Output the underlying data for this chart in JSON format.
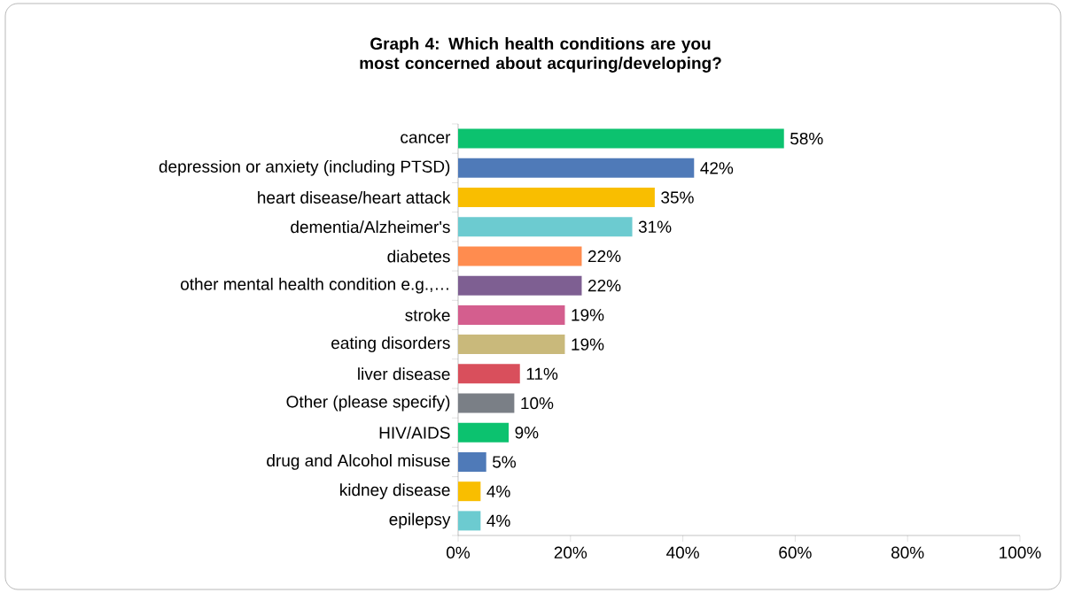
{
  "chart_data": {
    "type": "bar",
    "orientation": "horizontal",
    "title": "Graph 4: Which health conditions are you most concerned about acquring/developing?",
    "categories": [
      "cancer",
      "depression or anxiety (including PTSD)",
      "heart disease/heart attack",
      "dementia/Alzheimer's",
      "diabetes",
      "other mental health condition e.g.,…",
      "stroke",
      "eating disorders",
      "liver disease",
      "Other (please specify)",
      "HIV/AIDS",
      "drug and Alcohol misuse",
      "kidney disease",
      "epilepsy"
    ],
    "values": [
      58,
      42,
      35,
      31,
      22,
      22,
      19,
      19,
      11,
      10,
      9,
      5,
      4,
      4
    ],
    "value_labels": [
      "58%",
      "42%",
      "35%",
      "31%",
      "22%",
      "22%",
      "19%",
      "19%",
      "11%",
      "10%",
      "9%",
      "5%",
      "4%",
      "4%"
    ],
    "colors": [
      "#0cc26f",
      "#4f7ab8",
      "#f9be00",
      "#6ccbd0",
      "#ff8c4f",
      "#7e5f92",
      "#d45e8e",
      "#c9b97b",
      "#d94f5c",
      "#7a7f86",
      "#0cc26f",
      "#4f7ab8",
      "#f9be00",
      "#6ccbd0"
    ],
    "xlim": [
      0,
      100
    ],
    "xticks": [
      {
        "value": 0,
        "label": "0%"
      },
      {
        "value": 20,
        "label": "20%"
      },
      {
        "value": 40,
        "label": "40%"
      },
      {
        "value": 60,
        "label": "60%"
      },
      {
        "value": 80,
        "label": "80%"
      },
      {
        "value": 100,
        "label": "100%"
      }
    ],
    "grid": false,
    "legend": false
  }
}
